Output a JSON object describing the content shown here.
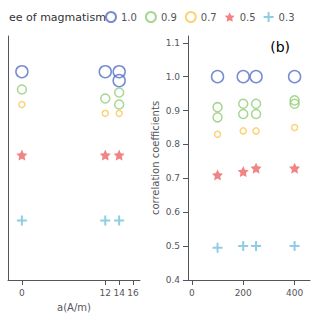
{
  "legend_title": "ee of magmatism",
  "chart_data": [
    {
      "type": "scatter",
      "xlabel": "a(A/m)",
      "xlim": [
        -2,
        17
      ],
      "xticks": [
        0,
        12,
        14,
        16
      ],
      "ylim": [
        0.3,
        1.12
      ],
      "yticks": [],
      "tick_labels": "x",
      "grid": false,
      "legend": "top",
      "series": [
        {
          "name": "1.0",
          "marker": "circle",
          "x": [
            0,
            12,
            14
          ],
          "values": [
            1.0,
            1.0,
            1.0
          ]
        },
        {
          "name": "1.0",
          "marker": "circle",
          "x": [
            14
          ],
          "values": [
            0.97
          ]
        },
        {
          "name": "0.9",
          "marker": "circle",
          "x": [
            0,
            12,
            14
          ],
          "values": [
            0.94,
            0.91,
            0.93
          ]
        },
        {
          "name": "0.9",
          "marker": "circle",
          "x": [
            14
          ],
          "values": [
            0.89
          ]
        },
        {
          "name": "0.7",
          "marker": "circle",
          "x": [
            0,
            12,
            14
          ],
          "values": [
            0.89,
            0.86,
            0.86
          ]
        },
        {
          "name": "0.5",
          "marker": "star",
          "x": [
            0,
            12,
            14
          ],
          "values": [
            0.72,
            0.72,
            0.72
          ]
        },
        {
          "name": "0.3",
          "marker": "plus",
          "x": [
            0,
            12,
            14
          ],
          "values": [
            0.5,
            0.5,
            0.5
          ]
        }
      ]
    },
    {
      "type": "scatter",
      "ylabel": "correlation coefficients",
      "xlim": [
        -15,
        460
      ],
      "xticks": [
        0,
        200,
        400
      ],
      "ylim": [
        0.4,
        1.12
      ],
      "yticks": [
        0.4,
        0.5,
        0.6,
        0.7,
        0.8,
        0.9,
        {
          "value": 1.0,
          "label": "1.0"
        },
        1.1
      ],
      "grid": false,
      "annotations": [
        {
          "text": "(b)"
        }
      ],
      "series": [
        {
          "name": "1.0",
          "marker": "circle",
          "x": [
            100,
            200,
            250,
            400
          ],
          "values": [
            1.0,
            1.0,
            1.0,
            1.0
          ]
        },
        {
          "name": "0.9",
          "marker": "circle",
          "x": [
            100,
            200,
            250,
            400
          ],
          "values": [
            0.91,
            0.92,
            0.92,
            0.93
          ]
        },
        {
          "name": "0.9",
          "marker": "circle",
          "x": [
            100,
            200,
            250,
            400
          ],
          "values": [
            0.88,
            0.89,
            0.89,
            0.92
          ]
        },
        {
          "name": "0.7",
          "marker": "circle",
          "x": [
            100,
            200,
            250,
            400
          ],
          "values": [
            0.83,
            0.84,
            0.84,
            0.85
          ]
        },
        {
          "name": "0.5",
          "marker": "star",
          "x": [
            100,
            200,
            250,
            400
          ],
          "values": [
            0.71,
            0.72,
            0.73,
            0.73
          ]
        },
        {
          "name": "0.3",
          "marker": "plus",
          "x": [
            100,
            200,
            250,
            400
          ],
          "values": [
            0.495,
            0.5,
            0.5,
            0.5
          ]
        }
      ]
    }
  ]
}
